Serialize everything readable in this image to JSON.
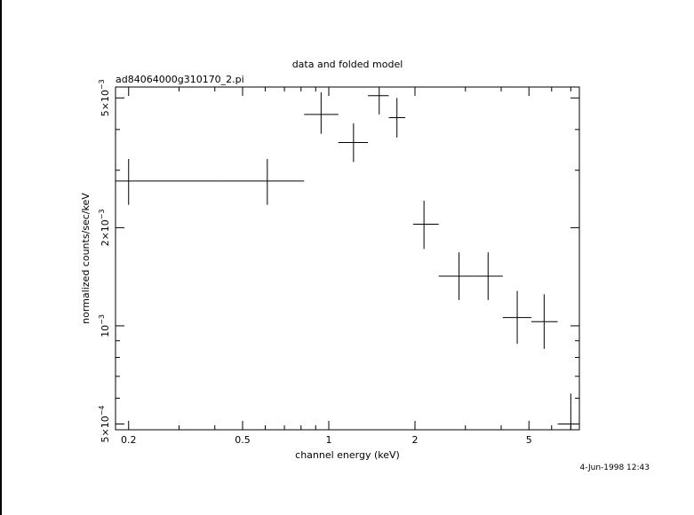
{
  "header": {
    "title": "data and folded model",
    "filename": "ad84064000g310170_2.pi",
    "timestamp": "4-Jun-1998 12:43"
  },
  "chart_data": {
    "type": "scatter",
    "title": "data and folded model",
    "subtitle": "ad84064000g310170_2.pi",
    "xlabel": "channel energy (keV)",
    "ylabel": "normalized counts/sec/keV",
    "xscale": "log",
    "yscale": "log",
    "xlim": [
      0.18,
      7.5
    ],
    "ylim": [
      0.00048,
      0.0054
    ],
    "grid": false,
    "legend": "none",
    "x_ticks": [
      {
        "value": 0.2,
        "label": "0.2"
      },
      {
        "value": 0.5,
        "label": "0.5"
      },
      {
        "value": 1,
        "label": "1"
      },
      {
        "value": 2,
        "label": "2"
      },
      {
        "value": 5,
        "label": "5"
      }
    ],
    "y_ticks": [
      {
        "value": 0.0005,
        "mantissa": "5×10",
        "exponent": "−4"
      },
      {
        "value": 0.001,
        "mantissa": "10",
        "exponent": "−3"
      },
      {
        "value": 0.002,
        "mantissa": "2×10",
        "exponent": "−3"
      },
      {
        "value": 0.005,
        "mantissa": "5×10",
        "exponent": "−3"
      }
    ],
    "points": [
      {
        "x": 0.2,
        "xlo": 0.18,
        "xhi": 0.41,
        "y": 0.00278,
        "ylo": 0.00235,
        "yhi": 0.00325
      },
      {
        "x": 0.61,
        "xlo": 0.41,
        "xhi": 0.82,
        "y": 0.00278,
        "ylo": 0.00235,
        "yhi": 0.00325
      },
      {
        "x": 0.94,
        "xlo": 0.82,
        "xhi": 1.08,
        "y": 0.00445,
        "ylo": 0.00388,
        "yhi": 0.0052
      },
      {
        "x": 1.22,
        "xlo": 1.08,
        "xhi": 1.37,
        "y": 0.00365,
        "ylo": 0.00318,
        "yhi": 0.00418
      },
      {
        "x": 1.5,
        "xlo": 1.37,
        "xhi": 1.62,
        "y": 0.00508,
        "ylo": 0.00445,
        "yhi": 0.0058
      },
      {
        "x": 1.73,
        "xlo": 1.62,
        "xhi": 1.85,
        "y": 0.00435,
        "ylo": 0.00378,
        "yhi": 0.005
      },
      {
        "x": 2.15,
        "xlo": 1.97,
        "xhi": 2.42,
        "y": 0.00205,
        "ylo": 0.00172,
        "yhi": 0.00242
      },
      {
        "x": 2.85,
        "xlo": 2.42,
        "xhi": 3.2,
        "y": 0.00142,
        "ylo": 0.0012,
        "yhi": 0.00168
      },
      {
        "x": 3.6,
        "xlo": 3.2,
        "xhi": 4.05,
        "y": 0.00142,
        "ylo": 0.0012,
        "yhi": 0.00168
      },
      {
        "x": 4.55,
        "xlo": 4.05,
        "xhi": 5.1,
        "y": 0.00106,
        "ylo": 0.00088,
        "yhi": 0.00128
      },
      {
        "x": 5.65,
        "xlo": 5.1,
        "xhi": 6.3,
        "y": 0.00103,
        "ylo": 0.00085,
        "yhi": 0.00125
      },
      {
        "x": 7.0,
        "xlo": 6.3,
        "xhi": 7.5,
        "y": 0.0005,
        "ylo": 0.00042,
        "yhi": 0.00062
      }
    ]
  }
}
